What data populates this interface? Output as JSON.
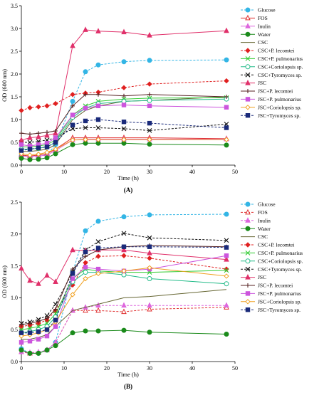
{
  "chart_data": [
    {
      "type": "line",
      "panel_label": "(A)",
      "xlabel": "Time (h)",
      "ylabel": "OD (600 nm)",
      "xlim": [
        0,
        50
      ],
      "ylim": [
        0,
        3.5
      ],
      "xticks": [
        0,
        10,
        20,
        30,
        40,
        50
      ],
      "yticks": [
        0,
        0.5,
        1.0,
        1.5,
        2.0,
        2.5,
        3.0,
        3.5
      ],
      "ytick_labels": [
        "0.0",
        "0.5",
        "1.0",
        "1.5",
        "2.0",
        "2.5",
        "3.0",
        "3.5"
      ],
      "grid": false,
      "legend_position": "right",
      "x": [
        0,
        2,
        4,
        6,
        8,
        12,
        15,
        18,
        24,
        30,
        48
      ],
      "series": [
        {
          "name": "Glucose",
          "color": "#33b5e5",
          "dash": "dashed",
          "marker": "circle",
          "fill": "#33b5e5",
          "values": [
            0.2,
            0.18,
            0.2,
            0.22,
            0.45,
            1.4,
            2.05,
            2.2,
            2.27,
            2.3,
            2.31
          ]
        },
        {
          "name": "FOS",
          "color": "#e03030",
          "dash": "solid",
          "marker": "triangle",
          "fill": "none",
          "values": [
            0.22,
            0.2,
            0.22,
            0.25,
            0.35,
            0.6,
            0.6,
            0.6,
            0.6,
            0.6,
            0.58
          ]
        },
        {
          "name": "Inulin",
          "color": "#dd66dd",
          "dash": "solid",
          "marker": "triangle",
          "fill": "#dd66dd",
          "values": [
            0.2,
            0.18,
            0.2,
            0.22,
            0.32,
            0.55,
            0.57,
            0.57,
            0.57,
            0.57,
            0.57
          ]
        },
        {
          "name": "Water",
          "color": "#1a8a1a",
          "dash": "solid",
          "marker": "circle",
          "fill": "#1a8a1a",
          "values": [
            0.15,
            0.12,
            0.13,
            0.16,
            0.25,
            0.45,
            0.48,
            0.48,
            0.48,
            0.46,
            0.44
          ]
        },
        {
          "name": "CSC",
          "color": "#666633",
          "dash": "solid",
          "marker": "none",
          "fill": "none",
          "values": [
            0.3,
            0.3,
            0.32,
            0.35,
            0.45,
            1.0,
            1.2,
            1.3,
            1.4,
            1.42,
            1.5
          ]
        },
        {
          "name": "CSC+P. lecomtei",
          "color": "#e02020",
          "dash": "dashed",
          "marker": "diamond",
          "fill": "#e02020",
          "values": [
            1.2,
            1.26,
            1.28,
            1.3,
            1.35,
            1.55,
            1.58,
            1.6,
            1.7,
            1.78,
            1.85
          ]
        },
        {
          "name": "CSC+P. pulmonarius",
          "color": "#33cc33",
          "dash": "solid",
          "marker": "cross",
          "fill": "none",
          "values": [
            0.4,
            0.4,
            0.42,
            0.45,
            0.55,
            1.1,
            1.3,
            1.4,
            1.45,
            1.47,
            1.48
          ]
        },
        {
          "name": "CSC+Coriolopsis sp.",
          "color": "#22bb88",
          "dash": "solid",
          "marker": "circle",
          "fill": "none",
          "values": [
            0.35,
            0.35,
            0.37,
            0.4,
            0.5,
            1.05,
            1.25,
            1.35,
            1.4,
            1.42,
            1.45
          ]
        },
        {
          "name": "CSC+Tyromyces sp.",
          "color": "#111111",
          "dash": "dashed",
          "marker": "x",
          "fill": "none",
          "values": [
            0.5,
            0.5,
            0.52,
            0.55,
            0.6,
            0.8,
            0.82,
            0.82,
            0.8,
            0.76,
            0.9
          ]
        },
        {
          "name": "JSC",
          "color": "#e0306a",
          "dash": "solid",
          "marker": "triangle",
          "fill": "#e0306a",
          "values": [
            0.55,
            0.6,
            0.62,
            0.65,
            0.7,
            2.62,
            2.97,
            2.94,
            2.92,
            2.85,
            2.95
          ]
        },
        {
          "name": "JSC+P. lecomtei",
          "color": "#552222",
          "dash": "solid",
          "marker": "plus",
          "fill": "none",
          "values": [
            0.7,
            0.68,
            0.7,
            0.72,
            0.75,
            1.3,
            1.55,
            1.55,
            1.52,
            1.55,
            1.5
          ]
        },
        {
          "name": "JSC+P. pulmonarius",
          "color": "#cc55dd",
          "dash": "solid",
          "marker": "square",
          "fill": "#cc55dd",
          "values": [
            0.45,
            0.42,
            0.45,
            0.48,
            0.6,
            1.1,
            1.25,
            1.3,
            1.32,
            1.3,
            1.27
          ]
        },
        {
          "name": "JSC+Coriolopsis sp.",
          "color": "#f0a020",
          "dash": "solid",
          "marker": "diamond",
          "fill": "none",
          "values": [
            0.25,
            0.22,
            0.24,
            0.28,
            0.35,
            0.55,
            0.56,
            0.56,
            0.56,
            0.56,
            0.56
          ]
        },
        {
          "name": "JSC+Tyromyces sp.",
          "color": "#1a2a7a",
          "dash": "dashed",
          "marker": "square",
          "fill": "#1a2a7a",
          "values": [
            0.32,
            0.35,
            0.38,
            0.4,
            0.5,
            0.88,
            0.97,
            1.0,
            0.95,
            0.92,
            0.82
          ]
        }
      ]
    },
    {
      "type": "line",
      "panel_label": "(B)",
      "xlabel": "Time (h)",
      "ylabel": "OD (600 nm)",
      "xlim": [
        0,
        50
      ],
      "ylim": [
        0,
        2.5
      ],
      "xticks": [
        0,
        10,
        20,
        30,
        40,
        50
      ],
      "yticks": [
        0,
        0.5,
        1.0,
        1.5,
        2.0,
        2.5
      ],
      "ytick_labels": [
        "0.0",
        "0.5",
        "1.0",
        "1.5",
        "2.0",
        "2.5"
      ],
      "grid": false,
      "legend_position": "right",
      "x": [
        0,
        2,
        4,
        6,
        8,
        12,
        15,
        18,
        24,
        30,
        48
      ],
      "series": [
        {
          "name": "Glucose",
          "color": "#33b5e5",
          "dash": "dashed",
          "marker": "circle",
          "fill": "#33b5e5",
          "values": [
            0.2,
            0.13,
            0.13,
            0.18,
            0.3,
            1.4,
            2.05,
            2.2,
            2.27,
            2.3,
            2.31
          ]
        },
        {
          "name": "FOS",
          "color": "#e03030",
          "dash": "dashed",
          "marker": "triangle",
          "fill": "none",
          "values": [
            0.15,
            0.13,
            0.14,
            0.18,
            0.3,
            0.8,
            0.8,
            0.8,
            0.78,
            0.82,
            0.85
          ]
        },
        {
          "name": "Inulin",
          "color": "#dd66dd",
          "dash": "dashed",
          "marker": "triangle",
          "fill": "#dd66dd",
          "values": [
            0.15,
            0.14,
            0.15,
            0.18,
            0.3,
            0.8,
            0.85,
            0.88,
            0.88,
            0.88,
            0.88
          ]
        },
        {
          "name": "Water",
          "color": "#1a8a1a",
          "dash": "solid",
          "marker": "circle",
          "fill": "#1a8a1a",
          "values": [
            0.18,
            0.13,
            0.13,
            0.18,
            0.25,
            0.45,
            0.48,
            0.48,
            0.49,
            0.46,
            0.43
          ]
        },
        {
          "name": "CSC",
          "color": "#666633",
          "dash": "solid",
          "marker": "none",
          "fill": "none",
          "values": [
            0.35,
            0.35,
            0.38,
            0.42,
            0.55,
            0.8,
            0.85,
            0.9,
            1.0,
            1.02,
            1.13
          ]
        },
        {
          "name": "CSC+P. lecomtei",
          "color": "#e02020",
          "dash": "dashed",
          "marker": "diamond",
          "fill": "#e02020",
          "values": [
            0.55,
            0.57,
            0.6,
            0.65,
            0.8,
            1.2,
            1.55,
            1.65,
            1.66,
            1.62,
            1.45
          ]
        },
        {
          "name": "CSC+P. pulmonarius",
          "color": "#33cc33",
          "dash": "solid",
          "marker": "cross",
          "fill": "none",
          "values": [
            0.5,
            0.52,
            0.55,
            0.6,
            0.75,
            1.3,
            1.45,
            1.42,
            1.4,
            1.4,
            1.43
          ]
        },
        {
          "name": "CSC+Coriolopsis sp.",
          "color": "#22bb88",
          "dash": "solid",
          "marker": "circle",
          "fill": "none",
          "values": [
            0.45,
            0.47,
            0.5,
            0.55,
            0.7,
            1.25,
            1.4,
            1.4,
            1.36,
            1.3,
            1.22
          ]
        },
        {
          "name": "CSC+Tyromyces sp.",
          "color": "#111111",
          "dash": "dashed",
          "marker": "x",
          "fill": "none",
          "values": [
            0.6,
            0.62,
            0.66,
            0.72,
            0.9,
            1.4,
            1.75,
            1.88,
            2.01,
            1.94,
            1.9
          ]
        },
        {
          "name": "JSC",
          "color": "#e0306a",
          "dash": "solid",
          "marker": "triangle",
          "fill": "#e0306a",
          "values": [
            1.46,
            1.27,
            1.22,
            1.35,
            1.25,
            1.75,
            1.74,
            1.75,
            1.75,
            1.7,
            1.6
          ]
        },
        {
          "name": "JSC+P. lecomtei",
          "color": "#552222",
          "dash": "solid",
          "marker": "plus",
          "fill": "none",
          "values": [
            0.58,
            0.6,
            0.63,
            0.68,
            0.82,
            1.45,
            1.65,
            1.75,
            1.8,
            1.82,
            1.8
          ]
        },
        {
          "name": "JSC+P. pulmonarius",
          "color": "#cc55dd",
          "dash": "solid",
          "marker": "square",
          "fill": "#cc55dd",
          "values": [
            0.3,
            0.32,
            0.35,
            0.4,
            0.55,
            1.3,
            1.48,
            1.45,
            1.42,
            1.45,
            1.66
          ]
        },
        {
          "name": "JSC+Coriolopsis sp.",
          "color": "#f0a020",
          "dash": "solid",
          "marker": "diamond",
          "fill": "none",
          "values": [
            0.4,
            0.42,
            0.45,
            0.5,
            0.62,
            1.05,
            1.3,
            1.38,
            1.42,
            1.47,
            1.34
          ]
        },
        {
          "name": "JSC+Tyromyces sp.",
          "color": "#1a2a7a",
          "dash": "dashed",
          "marker": "square",
          "fill": "#1a2a7a",
          "values": [
            0.45,
            0.45,
            0.47,
            0.5,
            0.65,
            1.38,
            1.72,
            1.78,
            1.8,
            1.8,
            1.79
          ]
        }
      ]
    }
  ]
}
